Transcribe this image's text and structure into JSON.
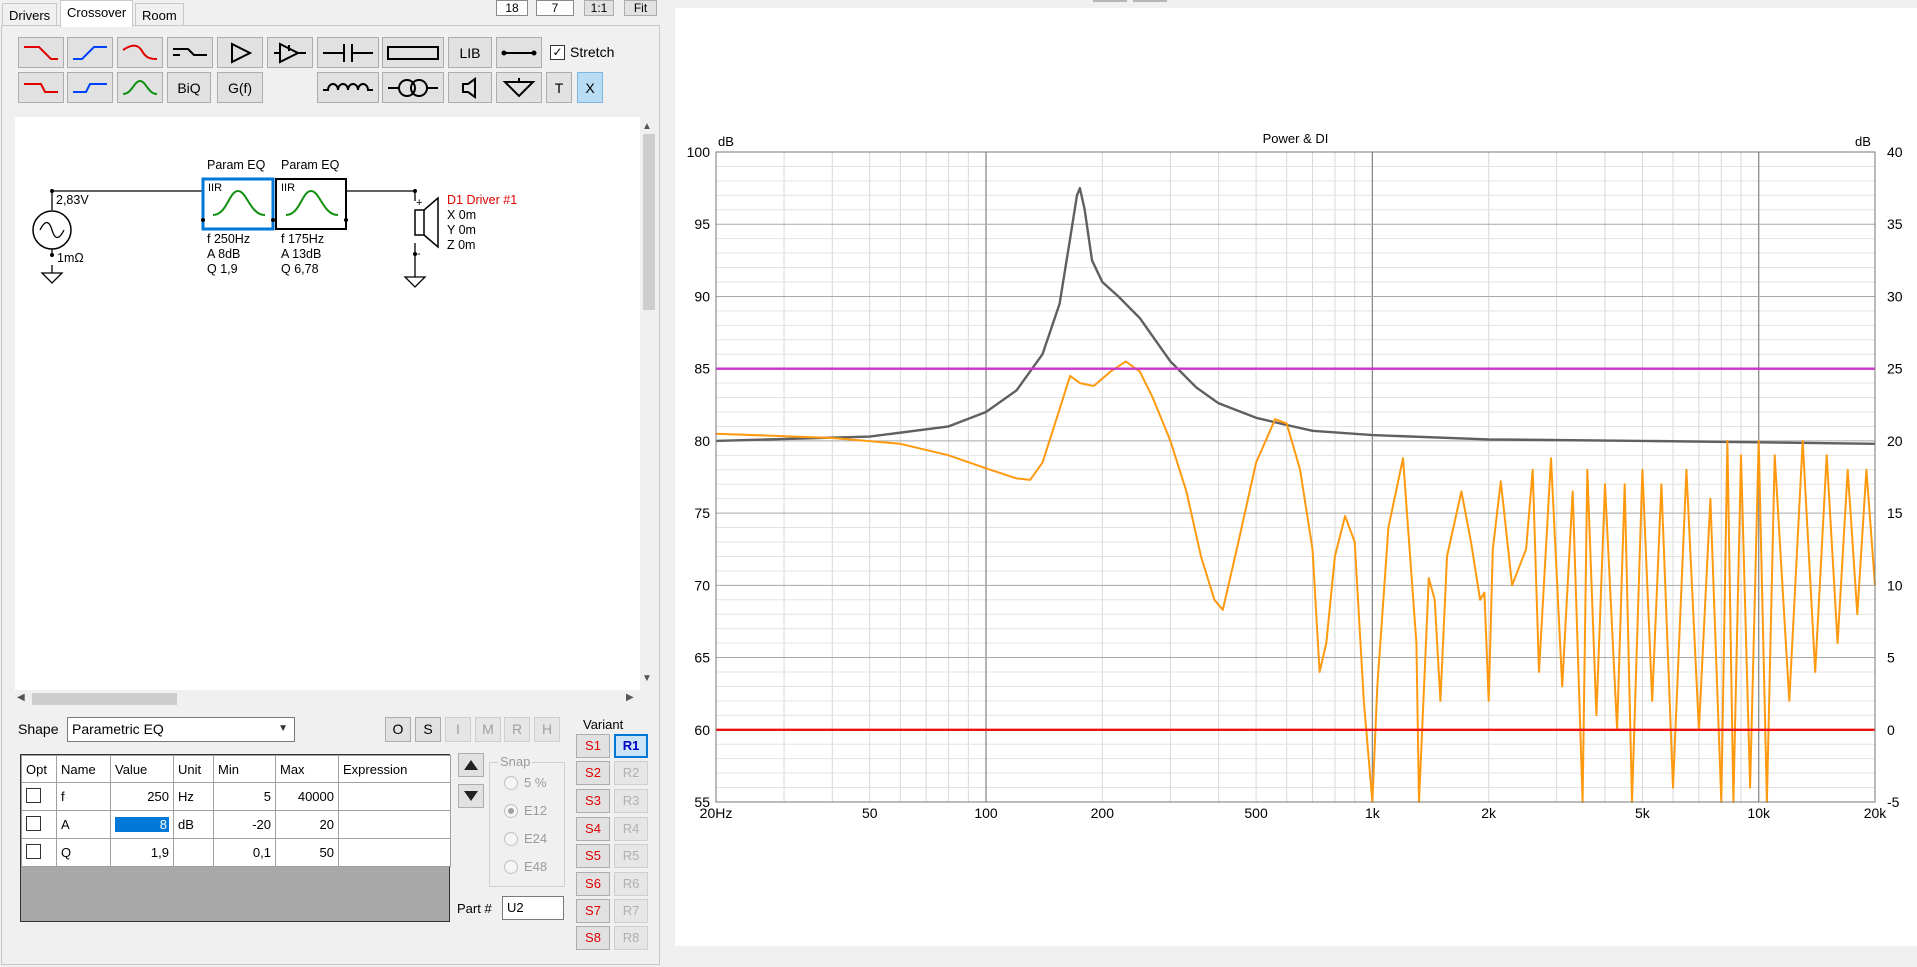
{
  "tabs": [
    {
      "label": "Drivers",
      "active": false
    },
    {
      "label": "Crossover",
      "active": true
    },
    {
      "label": "Room",
      "active": false
    }
  ],
  "top_controls": {
    "val1": "18",
    "val2": "7",
    "one_to_one": "1:1",
    "fit": "Fit"
  },
  "toolbar": {
    "lib": "LIB",
    "biq": "BiQ",
    "gf": "G(f)",
    "t": "T",
    "x": "X",
    "stretch_label": "Stretch",
    "stretch_checked": true
  },
  "schematic": {
    "source_voltage": "2,83V",
    "source_impedance": "1mΩ",
    "eq1": {
      "title": "Param EQ",
      "type": "IIR",
      "f": "f   250Hz",
      "a": "A  8dB",
      "q": "Q  1,9"
    },
    "eq2": {
      "title": "Param EQ",
      "type": "IIR",
      "f": "f   175Hz",
      "a": "A  13dB",
      "q": "Q  6,78"
    },
    "driver": {
      "name": "D1 Driver #1",
      "x": "X  0m",
      "y": "Y  0m",
      "z": "Z  0m",
      "plus": "+",
      "minus": "-"
    }
  },
  "shape": {
    "label": "Shape",
    "value": "Parametric EQ"
  },
  "side_buttons": [
    "O",
    "S",
    "I",
    "M",
    "R",
    "H"
  ],
  "param_table": {
    "headers": [
      "Opt",
      "Name",
      "Value",
      "Unit",
      "Min",
      "Max",
      "Expression"
    ],
    "rows": [
      {
        "name": "f",
        "value": "250",
        "unit": "Hz",
        "min": "5",
        "max": "40000",
        "expr": ""
      },
      {
        "name": "A",
        "value": "8",
        "unit": "dB",
        "min": "-20",
        "max": "20",
        "expr": ""
      },
      {
        "name": "Q",
        "value": "1,9",
        "unit": "",
        "min": "0,1",
        "max": "50",
        "expr": ""
      }
    ]
  },
  "snap": {
    "title": "Snap",
    "options": [
      "5 %",
      "E12",
      "E24",
      "E48"
    ],
    "selected": "E12"
  },
  "part": {
    "label": "Part #",
    "value": "U2"
  },
  "variant": {
    "label": "Variant",
    "s": [
      "S1",
      "S2",
      "S3",
      "S4",
      "S5",
      "S6",
      "S7",
      "S8"
    ],
    "r": [
      "R1",
      "R2",
      "R3",
      "R4",
      "R5",
      "R6",
      "R7",
      "R8"
    ],
    "active_r": "R1"
  },
  "colors": {
    "power": "#606060",
    "di": "#ff9a10",
    "magenta": "#cc33cc",
    "red": "#ee1111",
    "accent": "#0078d7"
  },
  "chart_data": {
    "type": "line",
    "title": "Power & DI",
    "xlabel": "",
    "ylabel_left": "dB",
    "ylabel_right": "dB",
    "x_scale": "log",
    "xlim": [
      20,
      20000
    ],
    "ylim_left": [
      55,
      100
    ],
    "ylim_right": [
      -5,
      40
    ],
    "x_ticks": [
      {
        "v": 20,
        "label": "20Hz"
      },
      {
        "v": 50,
        "label": "50"
      },
      {
        "v": 100,
        "label": "100"
      },
      {
        "v": 200,
        "label": "200"
      },
      {
        "v": 500,
        "label": "500"
      },
      {
        "v": 1000,
        "label": "1k"
      },
      {
        "v": 2000,
        "label": "2k"
      },
      {
        "v": 5000,
        "label": "5k"
      },
      {
        "v": 10000,
        "label": "10k"
      },
      {
        "v": 20000,
        "label": "20k"
      }
    ],
    "y_ticks_left": [
      "100",
      "95",
      "90",
      "85",
      "80",
      "75",
      "70",
      "65",
      "60",
      "55"
    ],
    "y_ticks_right": [
      "40",
      "35",
      "30",
      "25",
      "20",
      "15",
      "10",
      "5",
      "0",
      "-5"
    ],
    "grid": true,
    "series": [
      {
        "axis": "left",
        "color": "#606060",
        "x": [
          20,
          50,
          80,
          100,
          120,
          140,
          155,
          165,
          172,
          175,
          180,
          188,
          200,
          220,
          250,
          300,
          350,
          400,
          500,
          600,
          700,
          1000,
          2000,
          5000,
          10000,
          20000
        ],
        "y": [
          80,
          80.3,
          81,
          82,
          83.5,
          86,
          89.5,
          94,
          97,
          97.5,
          96,
          92.5,
          91,
          90,
          88.5,
          85.5,
          83.7,
          82.6,
          81.6,
          81.1,
          80.7,
          80.4,
          80.1,
          80,
          79.9,
          79.8
        ]
      },
      {
        "axis": "left",
        "color": "#ff9a10",
        "x": [
          20,
          40,
          60,
          80,
          100,
          120,
          130,
          140,
          150,
          165,
          175,
          190,
          210,
          230,
          250,
          270,
          300,
          330,
          360,
          390,
          410,
          450,
          500,
          560,
          600,
          650,
          700,
          730,
          760,
          800,
          850,
          900,
          950,
          1000,
          1030,
          1100,
          1200,
          1300,
          1320,
          1400,
          1450,
          1500,
          1560,
          1700,
          1800,
          1900,
          1950,
          2000,
          2050,
          2150,
          2300,
          2500,
          2600,
          2700,
          2900,
          3100,
          3300,
          3500,
          3600,
          3800,
          4000,
          4300,
          4500,
          4700,
          5000,
          5300,
          5600,
          6000,
          6500,
          7000,
          7500,
          8000,
          8300,
          8600,
          9000,
          9500,
          10000,
          10500,
          11000,
          12000,
          13000,
          14000,
          15000,
          16000,
          17000,
          18000,
          19000,
          20000
        ],
        "y": [
          80.5,
          80.2,
          79.8,
          79,
          78.1,
          77.4,
          77.3,
          78.5,
          81,
          84.5,
          84,
          83.8,
          84.8,
          85.5,
          84.8,
          83,
          80,
          76.5,
          72,
          69,
          68.3,
          73,
          78.5,
          81.5,
          81.2,
          78,
          72.5,
          64,
          66,
          72,
          74.8,
          73,
          62,
          54,
          63,
          74,
          78.8,
          66,
          55,
          70.5,
          69,
          62,
          72,
          76.5,
          73,
          69,
          69.5,
          62,
          72.5,
          77.2,
          70,
          72.5,
          78,
          64,
          78.8,
          63,
          76.5,
          55,
          78,
          61,
          77,
          60,
          77,
          55,
          78,
          62,
          77,
          56,
          78,
          60,
          76,
          55,
          80,
          53,
          79,
          56,
          80,
          54,
          79,
          62,
          80,
          64,
          79,
          66,
          78,
          68,
          78,
          70
        ]
      },
      {
        "axis": "left",
        "color": "#cc33cc",
        "x": [
          20,
          20000
        ],
        "y": [
          85,
          85
        ]
      },
      {
        "axis": "left",
        "color": "#ee1111",
        "x": [
          20,
          20000
        ],
        "y": [
          60,
          60
        ]
      }
    ]
  }
}
